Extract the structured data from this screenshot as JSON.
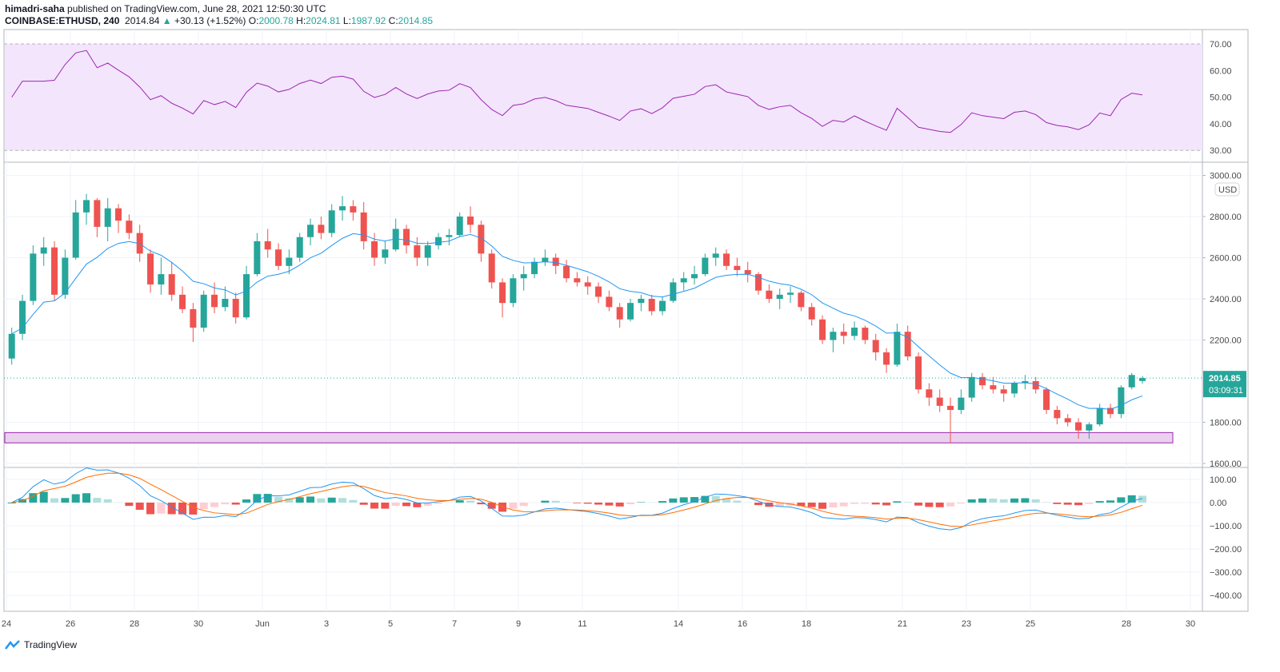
{
  "header": {
    "author": "himadri-saha",
    "published": "published on TradingView.com, June 28, 2021 12:50:30 UTC",
    "symbol": "COINBASE:ETHUSD, 240",
    "last": "2014.84",
    "change": "+30.13 (+1.52%)",
    "o_label": "O:",
    "o": "2000.78",
    "h_label": "H:",
    "h": "2024.81",
    "l_label": "L:",
    "l": "1987.92",
    "c_label": "C:",
    "c": "2014.85"
  },
  "brand": "TradingView",
  "colors": {
    "up": "#26a69a",
    "down": "#ef5350",
    "ema": "#2196f3",
    "rsi": "#9c27b0",
    "rsi_band": "#f3e5fc",
    "macd": "#2196f3",
    "signal": "#ff6d00",
    "zone": "#9c27b0"
  },
  "chart_data": {
    "type": "candlestick",
    "currency": "USD",
    "last_price_label": "2014.85",
    "countdown": "03:09:31",
    "price_ticks": [
      "3000.00",
      "2800.00",
      "2600.00",
      "2400.00",
      "2200.00",
      "1800.00",
      "1600.00"
    ],
    "price_tick_values": [
      3000,
      2800,
      2600,
      2400,
      2200,
      1800,
      1600
    ],
    "rsi_ticks": [
      "70.00",
      "60.00",
      "50.00",
      "40.00",
      "30.00"
    ],
    "rsi_tick_values": [
      70,
      60,
      50,
      40,
      30
    ],
    "macd_ticks": [
      "100.00",
      "0.00",
      "−100.00",
      "−200.00",
      "−300.00",
      "−400.00"
    ],
    "macd_tick_values": [
      100,
      0,
      -100,
      -200,
      -300,
      -400
    ],
    "x_labels": [
      "24",
      "26",
      "28",
      "30",
      "Jun",
      "3",
      "5",
      "7",
      "9",
      "11",
      "14",
      "16",
      "18",
      "21",
      "23",
      "25",
      "28",
      "30"
    ],
    "x_label_days": [
      0,
      2,
      4,
      6,
      8,
      10,
      12,
      14,
      16,
      18,
      21,
      23,
      25,
      28,
      30,
      32,
      35,
      37
    ],
    "start": "2021-05-24",
    "support_zone": [
      1700,
      1750
    ],
    "candles": [
      [
        2110,
        2260,
        2080,
        2230
      ],
      [
        2230,
        2420,
        2200,
        2390
      ],
      [
        2390,
        2660,
        2370,
        2620
      ],
      [
        2620,
        2700,
        2560,
        2650
      ],
      [
        2650,
        2680,
        2390,
        2420
      ],
      [
        2420,
        2640,
        2400,
        2600
      ],
      [
        2600,
        2880,
        2590,
        2820
      ],
      [
        2820,
        2910,
        2760,
        2880
      ],
      [
        2880,
        2890,
        2700,
        2750
      ],
      [
        2750,
        2890,
        2680,
        2840
      ],
      [
        2840,
        2860,
        2720,
        2780
      ],
      [
        2780,
        2810,
        2690,
        2720
      ],
      [
        2720,
        2760,
        2580,
        2620
      ],
      [
        2620,
        2640,
        2430,
        2470
      ],
      [
        2470,
        2600,
        2420,
        2520
      ],
      [
        2520,
        2580,
        2390,
        2420
      ],
      [
        2420,
        2460,
        2330,
        2350
      ],
      [
        2350,
        2380,
        2190,
        2260
      ],
      [
        2260,
        2440,
        2240,
        2420
      ],
      [
        2420,
        2480,
        2330,
        2360
      ],
      [
        2360,
        2460,
        2340,
        2400
      ],
      [
        2400,
        2430,
        2280,
        2310
      ],
      [
        2310,
        2560,
        2300,
        2520
      ],
      [
        2520,
        2720,
        2510,
        2680
      ],
      [
        2680,
        2740,
        2600,
        2640
      ],
      [
        2640,
        2670,
        2540,
        2560
      ],
      [
        2560,
        2640,
        2520,
        2600
      ],
      [
        2600,
        2720,
        2580,
        2700
      ],
      [
        2700,
        2790,
        2660,
        2760
      ],
      [
        2760,
        2800,
        2690,
        2720
      ],
      [
        2720,
        2860,
        2700,
        2830
      ],
      [
        2830,
        2900,
        2780,
        2850
      ],
      [
        2850,
        2880,
        2780,
        2820
      ],
      [
        2820,
        2870,
        2640,
        2680
      ],
      [
        2680,
        2720,
        2560,
        2600
      ],
      [
        2600,
        2680,
        2570,
        2640
      ],
      [
        2640,
        2790,
        2630,
        2740
      ],
      [
        2740,
        2760,
        2620,
        2660
      ],
      [
        2660,
        2700,
        2560,
        2600
      ],
      [
        2600,
        2680,
        2560,
        2660
      ],
      [
        2660,
        2720,
        2640,
        2700
      ],
      [
        2700,
        2740,
        2660,
        2710
      ],
      [
        2710,
        2820,
        2700,
        2800
      ],
      [
        2800,
        2850,
        2720,
        2760
      ],
      [
        2760,
        2780,
        2580,
        2620
      ],
      [
        2620,
        2640,
        2450,
        2480
      ],
      [
        2480,
        2500,
        2310,
        2380
      ],
      [
        2380,
        2520,
        2360,
        2500
      ],
      [
        2500,
        2560,
        2440,
        2520
      ],
      [
        2520,
        2600,
        2500,
        2580
      ],
      [
        2580,
        2640,
        2560,
        2600
      ],
      [
        2600,
        2620,
        2520,
        2560
      ],
      [
        2560,
        2590,
        2480,
        2500
      ],
      [
        2500,
        2530,
        2460,
        2480
      ],
      [
        2480,
        2510,
        2420,
        2460
      ],
      [
        2460,
        2480,
        2380,
        2410
      ],
      [
        2410,
        2440,
        2340,
        2360
      ],
      [
        2360,
        2380,
        2260,
        2300
      ],
      [
        2300,
        2400,
        2290,
        2380
      ],
      [
        2380,
        2420,
        2340,
        2400
      ],
      [
        2400,
        2420,
        2320,
        2340
      ],
      [
        2340,
        2410,
        2320,
        2390
      ],
      [
        2390,
        2500,
        2380,
        2480
      ],
      [
        2480,
        2530,
        2440,
        2500
      ],
      [
        2500,
        2560,
        2470,
        2520
      ],
      [
        2520,
        2620,
        2510,
        2600
      ],
      [
        2600,
        2650,
        2560,
        2620
      ],
      [
        2620,
        2640,
        2540,
        2560
      ],
      [
        2560,
        2600,
        2510,
        2540
      ],
      [
        2540,
        2580,
        2480,
        2520
      ],
      [
        2520,
        2530,
        2420,
        2440
      ],
      [
        2440,
        2470,
        2380,
        2400
      ],
      [
        2400,
        2450,
        2350,
        2420
      ],
      [
        2420,
        2460,
        2380,
        2430
      ],
      [
        2430,
        2440,
        2340,
        2360
      ],
      [
        2360,
        2380,
        2270,
        2300
      ],
      [
        2300,
        2320,
        2180,
        2200
      ],
      [
        2200,
        2260,
        2140,
        2240
      ],
      [
        2240,
        2280,
        2180,
        2220
      ],
      [
        2220,
        2290,
        2200,
        2260
      ],
      [
        2260,
        2270,
        2180,
        2200
      ],
      [
        2200,
        2230,
        2100,
        2140
      ],
      [
        2140,
        2160,
        2040,
        2080
      ],
      [
        2080,
        2280,
        2070,
        2240
      ],
      [
        2240,
        2270,
        2100,
        2120
      ],
      [
        2120,
        2140,
        1940,
        1960
      ],
      [
        1960,
        1990,
        1880,
        1920
      ],
      [
        1920,
        1960,
        1850,
        1880
      ],
      [
        1880,
        1920,
        1700,
        1860
      ],
      [
        1860,
        1960,
        1840,
        1920
      ],
      [
        1920,
        2040,
        1900,
        2020
      ],
      [
        2020,
        2040,
        1960,
        1980
      ],
      [
        1980,
        2020,
        1940,
        1960
      ],
      [
        1960,
        1980,
        1900,
        1940
      ],
      [
        1940,
        2000,
        1920,
        1990
      ],
      [
        1990,
        2030,
        1960,
        2000
      ],
      [
        2000,
        2020,
        1940,
        1960
      ],
      [
        1960,
        1970,
        1840,
        1860
      ],
      [
        1860,
        1880,
        1790,
        1820
      ],
      [
        1820,
        1840,
        1780,
        1800
      ],
      [
        1800,
        1820,
        1720,
        1760
      ],
      [
        1760,
        1800,
        1720,
        1790
      ],
      [
        1790,
        1890,
        1780,
        1870
      ],
      [
        1870,
        1890,
        1820,
        1840
      ],
      [
        1840,
        1980,
        1820,
        1970
      ],
      [
        1970,
        2040,
        1960,
        2030
      ],
      [
        2000.78,
        2024.81,
        1987.92,
        2014.85
      ]
    ]
  }
}
